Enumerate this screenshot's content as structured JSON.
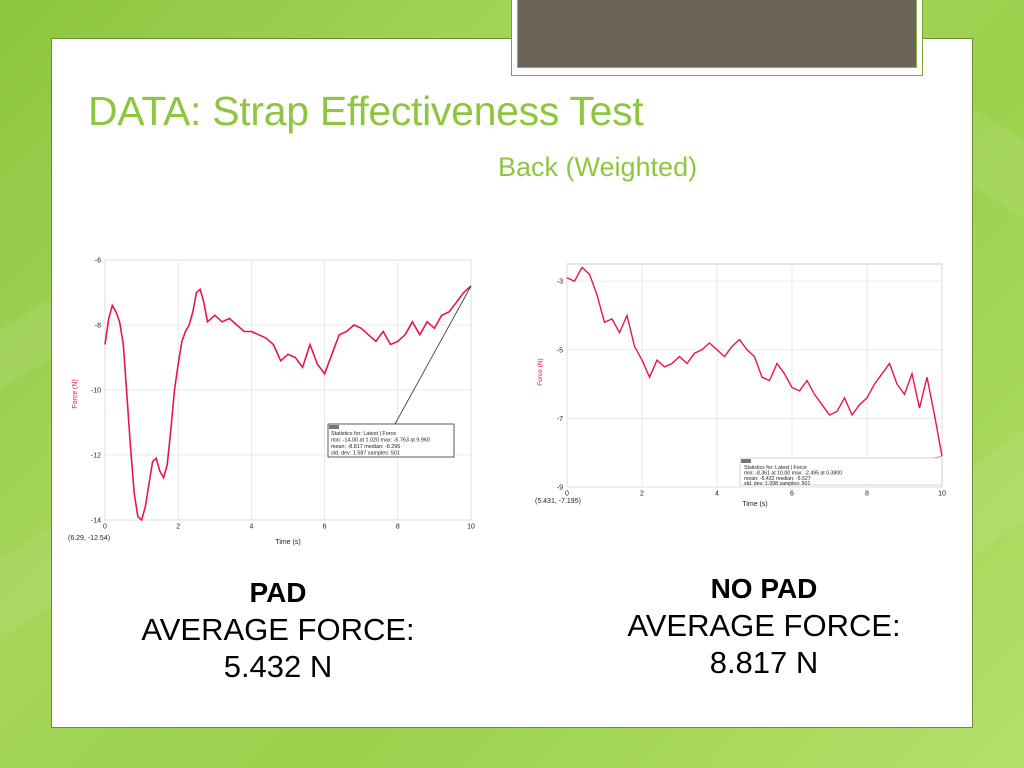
{
  "title": "DATA: Strap Effectiveness Test",
  "subtitle": "Back (Weighted)",
  "colors": {
    "accent": "#8dc63f",
    "series": "#e8154b",
    "frame": "#6b6356"
  },
  "chart_data": [
    {
      "type": "line",
      "xlabel": "Time (s)",
      "ylabel": "Force (N)",
      "xlim": [
        0,
        10
      ],
      "ylim": [
        -14,
        -6
      ],
      "xticks": [
        "0",
        "2",
        "4",
        "6",
        "8",
        "10"
      ],
      "yticks": [
        "-6",
        "-8",
        "-10",
        "-12",
        "-14"
      ],
      "grid": true,
      "coord_readout": "(6.29, -12.54)",
      "stats": {
        "header": "Statistics for: Latest | Force",
        "line1": "min: -14.00 at 1.020 max: -6.763 at 9.960",
        "line2": "mean: -8.817 median: -8.296",
        "line3": "std. dev: 1.587 samples: 501"
      },
      "series": [
        {
          "x": [
            0,
            0.1,
            0.2,
            0.3,
            0.4,
            0.5,
            0.6,
            0.7,
            0.8,
            0.9,
            1.0,
            1.1,
            1.2,
            1.3,
            1.4,
            1.5,
            1.6,
            1.7,
            1.8,
            1.9,
            2.0,
            2.1,
            2.2,
            2.3,
            2.4,
            2.5,
            2.6,
            2.7,
            2.8,
            3.0,
            3.2,
            3.4,
            3.6,
            3.8,
            4.0,
            4.2,
            4.4,
            4.6,
            4.8,
            5.0,
            5.2,
            5.4,
            5.6,
            5.8,
            6.0,
            6.2,
            6.4,
            6.6,
            6.8,
            7.0,
            7.2,
            7.4,
            7.6,
            7.8,
            8.0,
            8.2,
            8.4,
            8.6,
            8.8,
            9.0,
            9.2,
            9.4,
            9.6,
            9.8,
            10.0
          ],
          "y": [
            -8.6,
            -7.8,
            -7.4,
            -7.6,
            -7.9,
            -8.6,
            -10.2,
            -11.8,
            -13.2,
            -13.9,
            -14.0,
            -13.6,
            -12.9,
            -12.2,
            -12.1,
            -12.5,
            -12.7,
            -12.3,
            -11.2,
            -10.0,
            -9.2,
            -8.5,
            -8.2,
            -8.0,
            -7.6,
            -7.0,
            -6.9,
            -7.3,
            -7.9,
            -7.7,
            -7.9,
            -7.8,
            -8.0,
            -8.2,
            -8.2,
            -8.3,
            -8.4,
            -8.6,
            -9.1,
            -8.9,
            -9.0,
            -9.3,
            -8.6,
            -9.2,
            -9.5,
            -8.9,
            -8.3,
            -8.2,
            -8.0,
            -8.1,
            -8.3,
            -8.5,
            -8.2,
            -8.6,
            -8.5,
            -8.3,
            -7.9,
            -8.3,
            -7.9,
            -8.1,
            -7.7,
            -7.6,
            -7.3,
            -7.0,
            -6.8
          ]
        }
      ]
    },
    {
      "type": "line",
      "xlabel": "Time (s)",
      "ylabel": "Force (N)",
      "xlim": [
        0,
        10
      ],
      "ylim": [
        -9,
        -2.5
      ],
      "xticks": [
        "0",
        "2",
        "4",
        "6",
        "8",
        "10"
      ],
      "yticks": [
        "-3",
        "-5",
        "-7",
        "-9"
      ],
      "grid": true,
      "coord_readout": "(5.431, -7.195)",
      "stats": {
        "header": "Statistics for: Latest | Force",
        "line1": "min: -8.361 at 10.00 max: -2.495 at 0.3800",
        "line2": "mean: -5.432 median: -5.527",
        "line3": "std. dev: 1.098 samples: 501"
      },
      "series": [
        {
          "x": [
            0,
            0.2,
            0.4,
            0.6,
            0.8,
            1.0,
            1.2,
            1.4,
            1.6,
            1.8,
            2.0,
            2.2,
            2.4,
            2.6,
            2.8,
            3.0,
            3.2,
            3.4,
            3.6,
            3.8,
            4.0,
            4.2,
            4.4,
            4.6,
            4.8,
            5.0,
            5.2,
            5.4,
            5.6,
            5.8,
            6.0,
            6.2,
            6.4,
            6.6,
            6.8,
            7.0,
            7.2,
            7.4,
            7.6,
            7.8,
            8.0,
            8.2,
            8.4,
            8.6,
            8.8,
            9.0,
            9.2,
            9.4,
            9.6,
            9.8,
            10.0
          ],
          "y": [
            -2.9,
            -3.0,
            -2.6,
            -2.8,
            -3.4,
            -4.2,
            -4.1,
            -4.5,
            -4.0,
            -4.9,
            -5.3,
            -5.8,
            -5.3,
            -5.5,
            -5.4,
            -5.2,
            -5.4,
            -5.1,
            -5.0,
            -4.8,
            -5.0,
            -5.2,
            -4.9,
            -4.7,
            -5.0,
            -5.2,
            -5.8,
            -5.9,
            -5.4,
            -5.7,
            -6.1,
            -6.2,
            -5.9,
            -6.3,
            -6.6,
            -6.9,
            -6.8,
            -6.4,
            -6.9,
            -6.6,
            -6.4,
            -6.0,
            -5.7,
            -5.4,
            -6.0,
            -6.3,
            -5.7,
            -6.7,
            -5.8,
            -6.9,
            -8.1
          ]
        }
      ]
    }
  ],
  "captions": [
    {
      "title": "PAD",
      "line1": "AVERAGE FORCE:",
      "line2": "5.432 N"
    },
    {
      "title": "NO PAD",
      "line1": "AVERAGE FORCE:",
      "line2": "8.817 N"
    }
  ]
}
